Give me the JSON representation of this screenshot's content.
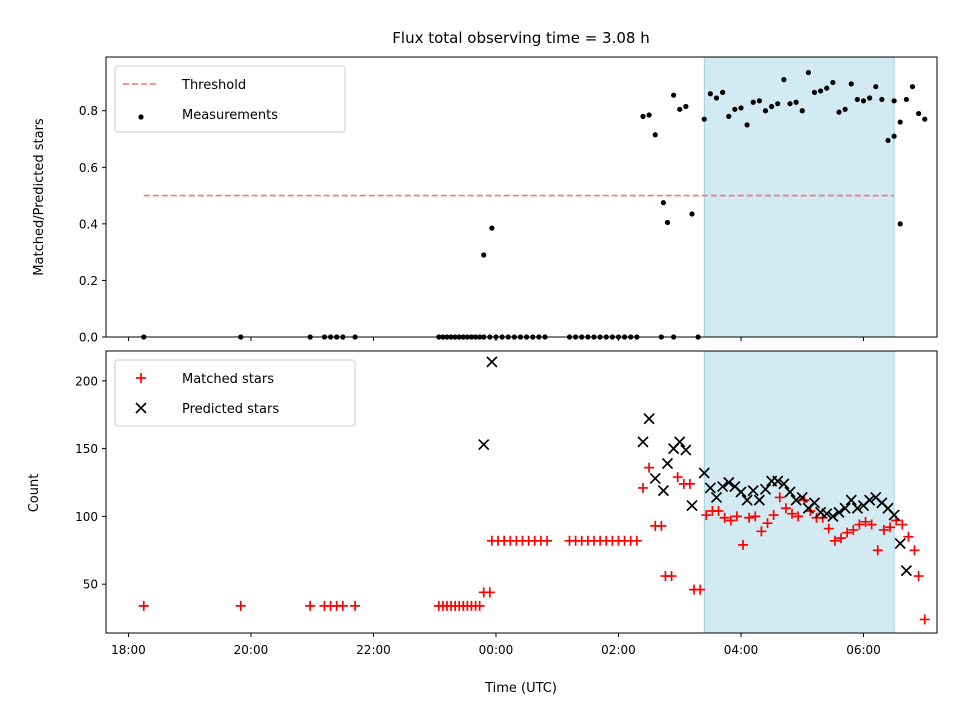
{
  "chart_data": [
    {
      "type": "scatter",
      "title": "Flux total observing time = 3.08 h",
      "xlabel": "",
      "ylabel": "Matched/Predicted stars",
      "xlim": [
        "17:38",
        "07:12"
      ],
      "ylim": [
        0.0,
        0.99
      ],
      "x_ticks": [
        "18:00",
        "20:00",
        "22:00",
        "00:00",
        "02:00",
        "04:00",
        "06:00"
      ],
      "x_tick_labels_shown": false,
      "y_ticks": [
        0.0,
        0.2,
        0.4,
        0.6,
        0.8
      ],
      "y_tick_labels": [
        "0.0",
        "0.2",
        "0.4",
        "0.6",
        "0.8"
      ],
      "grid": false,
      "legend_placement": "upper-left",
      "shaded_region": {
        "x_start": "03:24",
        "x_end": "06:30",
        "color": "#add8e6"
      },
      "series": [
        {
          "name": "Threshold",
          "style": "dashed-line",
          "color": "#ff7070",
          "points": [
            [
              "18:15",
              0.5
            ],
            [
              "06:30",
              0.5
            ]
          ]
        },
        {
          "name": "Measurements",
          "style": "dot",
          "color": "#000000",
          "points": [
            [
              "18:15",
              0.0
            ],
            [
              "19:50",
              0.0
            ],
            [
              "20:58",
              0.0
            ],
            [
              "21:12",
              0.0
            ],
            [
              "21:18",
              0.0
            ],
            [
              "21:24",
              0.0
            ],
            [
              "21:30",
              0.0
            ],
            [
              "21:42",
              0.0
            ],
            [
              "23:04",
              0.0
            ],
            [
              "23:08",
              0.0
            ],
            [
              "23:12",
              0.0
            ],
            [
              "23:16",
              0.0
            ],
            [
              "23:20",
              0.0
            ],
            [
              "23:24",
              0.0
            ],
            [
              "23:28",
              0.0
            ],
            [
              "23:32",
              0.0
            ],
            [
              "23:36",
              0.0
            ],
            [
              "23:40",
              0.0
            ],
            [
              "23:44",
              0.0
            ],
            [
              "23:48",
              0.0
            ],
            [
              "23:54",
              0.0
            ],
            [
              "00:00",
              0.0
            ],
            [
              "00:06",
              0.0
            ],
            [
              "00:12",
              0.0
            ],
            [
              "00:18",
              0.0
            ],
            [
              "00:24",
              0.0
            ],
            [
              "00:30",
              0.0
            ],
            [
              "00:36",
              0.0
            ],
            [
              "00:42",
              0.0
            ],
            [
              "00:48",
              0.0
            ],
            [
              "01:12",
              0.0
            ],
            [
              "01:18",
              0.0
            ],
            [
              "01:24",
              0.0
            ],
            [
              "01:30",
              0.0
            ],
            [
              "01:36",
              0.0
            ],
            [
              "01:42",
              0.0
            ],
            [
              "01:48",
              0.0
            ],
            [
              "01:54",
              0.0
            ],
            [
              "02:00",
              0.0
            ],
            [
              "02:06",
              0.0
            ],
            [
              "02:12",
              0.0
            ],
            [
              "02:18",
              0.0
            ],
            [
              "02:42",
              0.0
            ],
            [
              "02:54",
              0.0
            ],
            [
              "03:18",
              0.0
            ],
            [
              "23:48",
              0.29
            ],
            [
              "23:56",
              0.385
            ],
            [
              "02:24",
              0.78
            ],
            [
              "02:30",
              0.785
            ],
            [
              "02:36",
              0.715
            ],
            [
              "02:44",
              0.475
            ],
            [
              "02:48",
              0.405
            ],
            [
              "02:54",
              0.855
            ],
            [
              "03:00",
              0.805
            ],
            [
              "03:06",
              0.815
            ],
            [
              "03:12",
              0.435
            ],
            [
              "03:24",
              0.77
            ],
            [
              "03:30",
              0.86
            ],
            [
              "03:36",
              0.845
            ],
            [
              "03:42",
              0.865
            ],
            [
              "03:48",
              0.78
            ],
            [
              "03:54",
              0.805
            ],
            [
              "04:00",
              0.81
            ],
            [
              "04:06",
              0.75
            ],
            [
              "04:12",
              0.83
            ],
            [
              "04:18",
              0.835
            ],
            [
              "04:24",
              0.8
            ],
            [
              "04:30",
              0.815
            ],
            [
              "04:36",
              0.825
            ],
            [
              "04:42",
              0.91
            ],
            [
              "04:48",
              0.825
            ],
            [
              "04:54",
              0.83
            ],
            [
              "05:00",
              0.8
            ],
            [
              "05:06",
              0.935
            ],
            [
              "05:12",
              0.865
            ],
            [
              "05:18",
              0.87
            ],
            [
              "05:24",
              0.88
            ],
            [
              "05:30",
              0.9
            ],
            [
              "05:36",
              0.795
            ],
            [
              "05:42",
              0.805
            ],
            [
              "05:48",
              0.895
            ],
            [
              "05:54",
              0.84
            ],
            [
              "06:00",
              0.835
            ],
            [
              "06:06",
              0.845
            ],
            [
              "06:12",
              0.885
            ],
            [
              "06:18",
              0.84
            ],
            [
              "06:24",
              0.695
            ],
            [
              "06:30",
              0.835
            ],
            [
              "06:36",
              0.76
            ],
            [
              "06:42",
              0.84
            ],
            [
              "06:48",
              0.885
            ],
            [
              "06:54",
              0.79
            ],
            [
              "07:00",
              0.77
            ],
            [
              "06:30",
              0.71
            ],
            [
              "06:36",
              0.4
            ]
          ]
        }
      ]
    },
    {
      "type": "scatter",
      "title": "",
      "xlabel": "Time (UTC)",
      "ylabel": "Count",
      "xlim": [
        "17:38",
        "07:12"
      ],
      "ylim": [
        14,
        222
      ],
      "x_ticks": [
        "18:00",
        "20:00",
        "22:00",
        "00:00",
        "02:00",
        "04:00",
        "06:00"
      ],
      "x_tick_labels": [
        "18:00",
        "20:00",
        "22:00",
        "00:00",
        "02:00",
        "04:00",
        "06:00"
      ],
      "y_ticks": [
        50,
        100,
        150,
        200
      ],
      "y_tick_labels": [
        "50",
        "100",
        "150",
        "200"
      ],
      "grid": false,
      "legend_placement": "upper-left",
      "shaded_region": {
        "x_start": "03:24",
        "x_end": "06:30",
        "color": "#add8e6"
      },
      "series": [
        {
          "name": "Matched stars",
          "marker": "plus",
          "color": "#ff0000",
          "points": [
            [
              "18:15",
              34
            ],
            [
              "19:50",
              34
            ],
            [
              "20:58",
              34
            ],
            [
              "21:12",
              34
            ],
            [
              "21:18",
              34
            ],
            [
              "21:24",
              34
            ],
            [
              "21:30",
              34
            ],
            [
              "21:42",
              34
            ],
            [
              "23:04",
              34
            ],
            [
              "23:08",
              34
            ],
            [
              "23:12",
              34
            ],
            [
              "23:16",
              34
            ],
            [
              "23:20",
              34
            ],
            [
              "23:24",
              34
            ],
            [
              "23:28",
              34
            ],
            [
              "23:32",
              34
            ],
            [
              "23:36",
              34
            ],
            [
              "23:40",
              34
            ],
            [
              "23:44",
              34
            ],
            [
              "23:48",
              44
            ],
            [
              "23:54",
              44
            ],
            [
              "23:56",
              82
            ],
            [
              "00:02",
              82
            ],
            [
              "00:08",
              82
            ],
            [
              "00:14",
              82
            ],
            [
              "00:20",
              82
            ],
            [
              "00:26",
              82
            ],
            [
              "00:32",
              82
            ],
            [
              "00:38",
              82
            ],
            [
              "00:44",
              82
            ],
            [
              "00:50",
              82
            ],
            [
              "01:12",
              82
            ],
            [
              "01:18",
              82
            ],
            [
              "01:24",
              82
            ],
            [
              "01:30",
              82
            ],
            [
              "01:36",
              82
            ],
            [
              "01:42",
              82
            ],
            [
              "01:48",
              82
            ],
            [
              "01:54",
              82
            ],
            [
              "02:00",
              82
            ],
            [
              "02:06",
              82
            ],
            [
              "02:12",
              82
            ],
            [
              "02:18",
              82
            ],
            [
              "02:24",
              121
            ],
            [
              "02:30",
              136
            ],
            [
              "02:36",
              93
            ],
            [
              "02:42",
              93
            ],
            [
              "02:46",
              56
            ],
            [
              "02:52",
              56
            ],
            [
              "02:58",
              129
            ],
            [
              "03:04",
              124
            ],
            [
              "03:10",
              124
            ],
            [
              "03:14",
              46
            ],
            [
              "03:20",
              46
            ],
            [
              "03:26",
              101
            ],
            [
              "03:32",
              104
            ],
            [
              "03:38",
              104
            ],
            [
              "03:44",
              99
            ],
            [
              "03:50",
              97
            ],
            [
              "03:56",
              100
            ],
            [
              "04:02",
              79
            ],
            [
              "04:08",
              99
            ],
            [
              "04:14",
              100
            ],
            [
              "04:20",
              89
            ],
            [
              "04:26",
              95
            ],
            [
              "04:32",
              101
            ],
            [
              "04:38",
              114
            ],
            [
              "04:44",
              106
            ],
            [
              "04:50",
              102
            ],
            [
              "04:56",
              100
            ],
            [
              "05:02",
              112
            ],
            [
              "05:08",
              104
            ],
            [
              "05:14",
              99
            ],
            [
              "05:20",
              99
            ],
            [
              "05:26",
              91
            ],
            [
              "05:32",
              82
            ],
            [
              "05:38",
              84
            ],
            [
              "05:44",
              88
            ],
            [
              "05:50",
              90
            ],
            [
              "05:56",
              94
            ],
            [
              "06:02",
              96
            ],
            [
              "06:08",
              94
            ],
            [
              "06:14",
              75
            ],
            [
              "06:20",
              90
            ],
            [
              "06:26",
              92
            ],
            [
              "06:32",
              97
            ],
            [
              "06:38",
              94
            ],
            [
              "06:44",
              85
            ],
            [
              "06:50",
              75
            ],
            [
              "06:54",
              56
            ],
            [
              "07:00",
              24
            ]
          ]
        },
        {
          "name": "Predicted stars",
          "marker": "x",
          "color": "#000000",
          "points": [
            [
              "23:48",
              153
            ],
            [
              "23:56",
              214
            ],
            [
              "02:24",
              155
            ],
            [
              "02:30",
              172
            ],
            [
              "02:36",
              128
            ],
            [
              "02:44",
              119
            ],
            [
              "02:48",
              139
            ],
            [
              "02:54",
              150
            ],
            [
              "03:00",
              155
            ],
            [
              "03:06",
              149
            ],
            [
              "03:12",
              108
            ],
            [
              "03:24",
              132
            ],
            [
              "03:30",
              121
            ],
            [
              "03:36",
              114
            ],
            [
              "03:42",
              122
            ],
            [
              "03:48",
              125
            ],
            [
              "03:54",
              122
            ],
            [
              "04:00",
              118
            ],
            [
              "04:06",
              112
            ],
            [
              "04:12",
              119
            ],
            [
              "04:18",
              112
            ],
            [
              "04:24",
              120
            ],
            [
              "04:30",
              126
            ],
            [
              "04:36",
              126
            ],
            [
              "04:42",
              124
            ],
            [
              "04:48",
              118
            ],
            [
              "04:54",
              112
            ],
            [
              "05:00",
              114
            ],
            [
              "05:06",
              106
            ],
            [
              "05:12",
              110
            ],
            [
              "05:18",
              103
            ],
            [
              "05:24",
              102
            ],
            [
              "05:30",
              100
            ],
            [
              "05:36",
              103
            ],
            [
              "05:42",
              106
            ],
            [
              "05:48",
              112
            ],
            [
              "05:54",
              106
            ],
            [
              "06:00",
              108
            ],
            [
              "06:06",
              112
            ],
            [
              "06:12",
              114
            ],
            [
              "06:18",
              110
            ],
            [
              "06:24",
              106
            ],
            [
              "06:30",
              101
            ],
            [
              "06:36",
              80
            ],
            [
              "06:42",
              60
            ]
          ]
        }
      ]
    }
  ]
}
